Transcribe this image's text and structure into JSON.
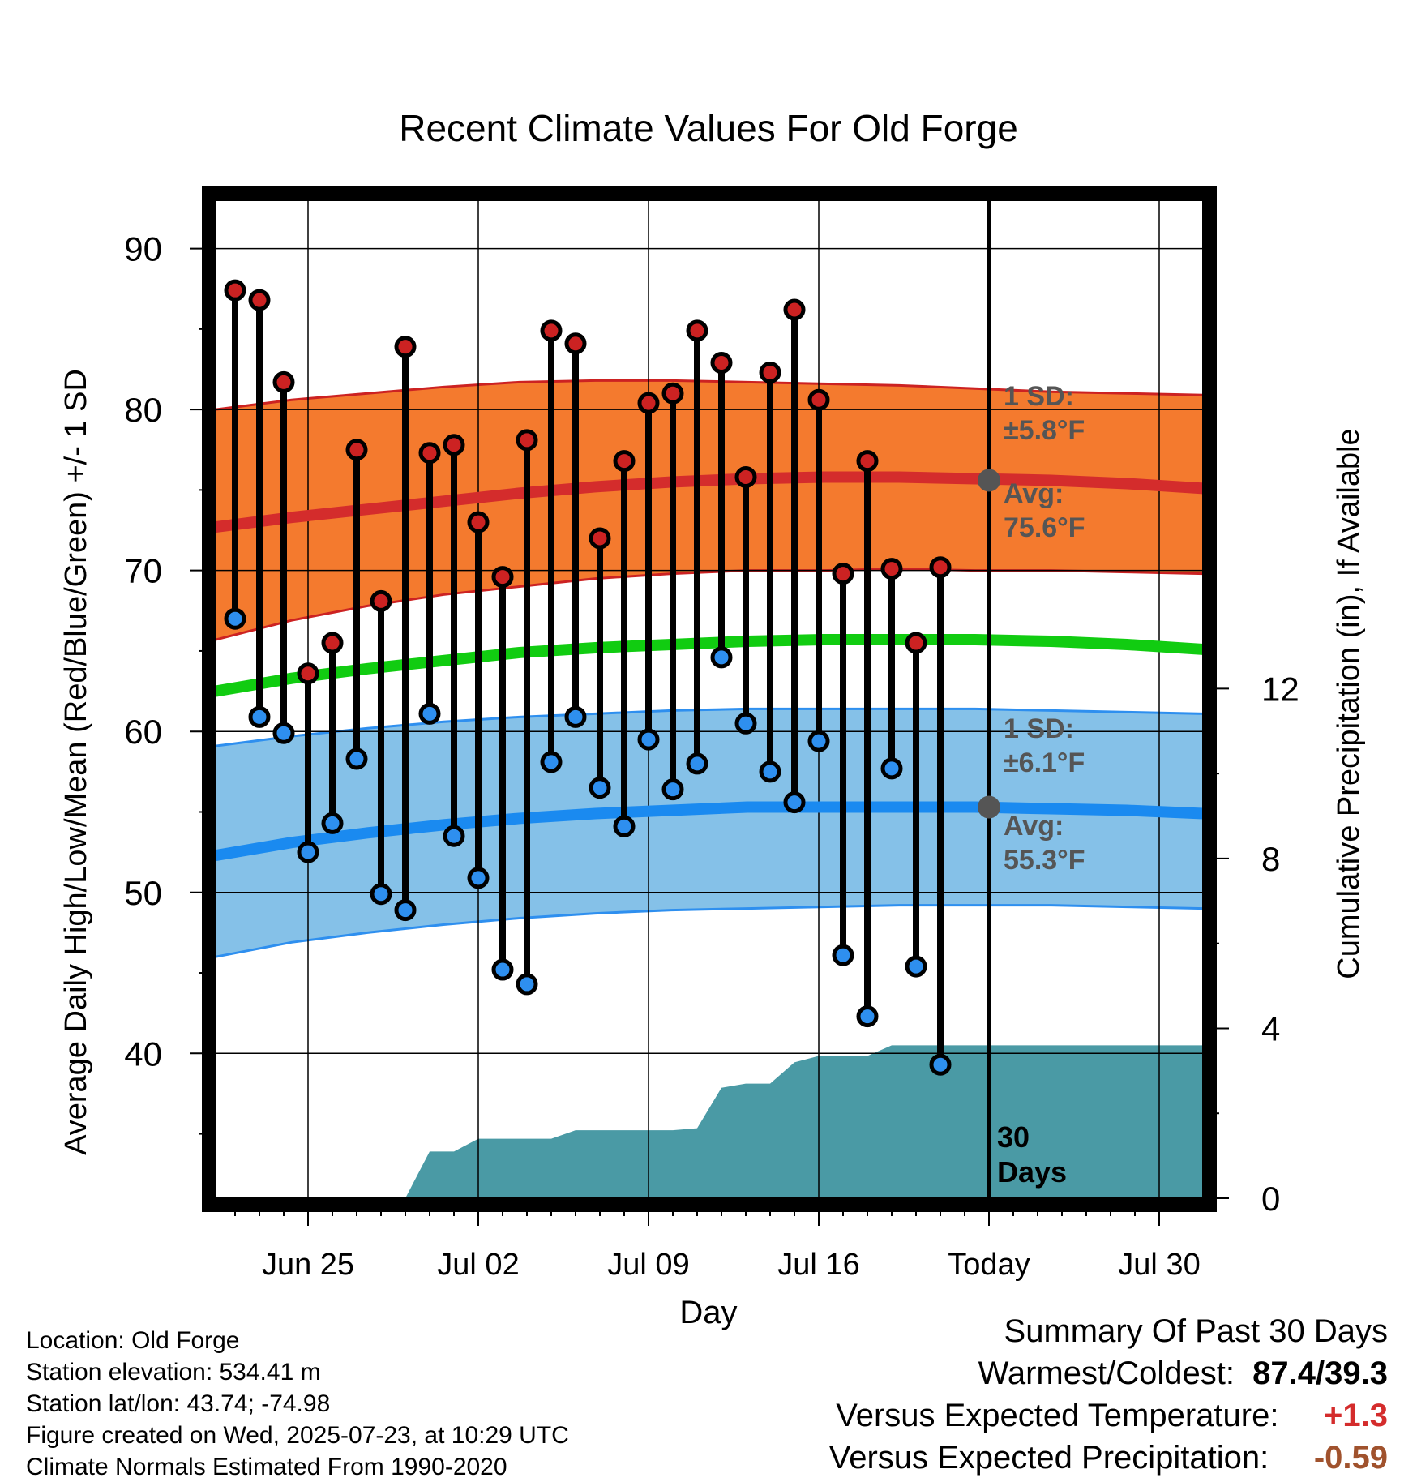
{
  "chart_data": {
    "type": "line",
    "title": "Recent Climate Values For Old Forge",
    "xlabel": "Day",
    "ylabel": "Average Daily High/Low/Mean (Red/Blue/Green) +/- 1 SD",
    "y2label": "Cumulative Precipitation (in), If Available",
    "ylim": [
      31,
      93
    ],
    "y_ticks": [
      40,
      50,
      60,
      70,
      80,
      90
    ],
    "y2lim": [
      0,
      23.5
    ],
    "y2_ticks": [
      0,
      4,
      8,
      12
    ],
    "x_tick_labels": [
      "Jun 25",
      "Jul 02",
      "Jul 09",
      "Jul 16",
      "Today",
      "Jul 30"
    ],
    "x_dates": [
      "2025-06-22",
      "2025-06-23",
      "2025-06-24",
      "2025-06-25",
      "2025-06-26",
      "2025-06-27",
      "2025-06-28",
      "2025-06-29",
      "2025-06-30",
      "2025-07-01",
      "2025-07-02",
      "2025-07-03",
      "2025-07-04",
      "2025-07-05",
      "2025-07-06",
      "2025-07-07",
      "2025-07-08",
      "2025-07-09",
      "2025-07-10",
      "2025-07-11",
      "2025-07-12",
      "2025-07-13",
      "2025-07-14",
      "2025-07-15",
      "2025-07-16",
      "2025-07-17",
      "2025-07-18",
      "2025-07-19",
      "2025-07-20",
      "2025-07-21",
      "2025-07-22"
    ],
    "series": [
      {
        "name": "High",
        "color": "#cc2222",
        "values": [
          87.4,
          86.8,
          81.7,
          63.6,
          65.5,
          77.5,
          68.1,
          83.9,
          77.3,
          77.8,
          73.0,
          69.6,
          78.1,
          84.9,
          84.1,
          72.0,
          76.8,
          80.4,
          81.0,
          84.9,
          82.9,
          75.8,
          82.3,
          86.2,
          80.6,
          69.8,
          76.8,
          70.1,
          65.5,
          70.2
        ]
      },
      {
        "name": "Low",
        "color": "#2e8fef",
        "values": [
          67.0,
          60.9,
          59.9,
          52.5,
          54.3,
          58.3,
          49.9,
          48.9,
          61.1,
          53.5,
          50.9,
          45.2,
          44.3,
          58.1,
          60.9,
          56.5,
          54.1,
          59.5,
          56.4,
          58.0,
          64.6,
          60.5,
          57.5,
          55.6,
          59.4,
          46.1,
          42.3,
          57.7,
          45.4,
          39.3
        ]
      },
      {
        "name": "Precipitation",
        "color": "#4a9aa5",
        "values": [
          0,
          0,
          0,
          0,
          0,
          0,
          0,
          0,
          1.1,
          1.1,
          1.4,
          1.4,
          1.4,
          1.4,
          1.6,
          1.6,
          1.6,
          1.6,
          1.6,
          1.65,
          2.6,
          2.7,
          2.7,
          3.2,
          3.35,
          3.35,
          3.35,
          3.6,
          3.6,
          3.6,
          3.6
        ]
      }
    ],
    "normals": {
      "high_avg": [
        72.7,
        73.3,
        73.8,
        74.3,
        74.8,
        75.2,
        75.5,
        75.7,
        75.8,
        75.8,
        75.7,
        75.6,
        75.4,
        75.1
      ],
      "high_sd_upper": [
        80.0,
        80.6,
        81.0,
        81.4,
        81.7,
        81.8,
        81.8,
        81.7,
        81.6,
        81.5,
        81.3,
        81.1,
        81.0,
        80.9
      ],
      "high_sd_lower": [
        65.7,
        66.9,
        67.8,
        68.5,
        69.0,
        69.5,
        69.8,
        70.0,
        70.0,
        70.1,
        70.0,
        70.0,
        69.9,
        69.8
      ],
      "mean": [
        62.5,
        63.3,
        63.9,
        64.4,
        64.9,
        65.2,
        65.4,
        65.6,
        65.7,
        65.7,
        65.7,
        65.6,
        65.4,
        65.1
      ],
      "low_avg": [
        52.3,
        53.1,
        53.7,
        54.2,
        54.6,
        54.9,
        55.1,
        55.3,
        55.3,
        55.3,
        55.3,
        55.2,
        55.1,
        54.9
      ],
      "low_sd_upper": [
        59.1,
        59.7,
        60.2,
        60.6,
        60.9,
        61.1,
        61.3,
        61.4,
        61.4,
        61.4,
        61.4,
        61.3,
        61.2,
        61.1
      ],
      "low_sd_lower": [
        46.0,
        46.9,
        47.5,
        48.0,
        48.4,
        48.7,
        48.9,
        49.0,
        49.1,
        49.2,
        49.2,
        49.2,
        49.1,
        49.0
      ],
      "high_fill": "#f47a2e",
      "low_fill": "#85c1e8",
      "mean_color": "#11cc11"
    },
    "annotations": {
      "high_sd_title": "1 SD:",
      "high_sd_value": "±5.8°F",
      "high_avg_title": "Avg:",
      "high_avg_value": "75.6°F",
      "low_sd_title": "1 SD:",
      "low_sd_value": "±6.1°F",
      "low_avg_title": "Avg:",
      "low_avg_value": "55.3°F",
      "days_line1": "30",
      "days_line2": "Days"
    },
    "grid": true
  },
  "meta": {
    "location": "Location: Old Forge",
    "elevation": "Station elevation: 534.41 m",
    "latlon": "Station lat/lon: 43.74; -74.98",
    "created": "Figure created on Wed, 2025-07-23, at 10:29 UTC",
    "normals": "Climate Normals Estimated From 1990-2020"
  },
  "summary": {
    "title": "Summary Of Past 30 Days",
    "warm_cold_label": "Warmest/Coldest:",
    "warm_cold_value": "87.4/39.3",
    "temp_label": "Versus Expected Temperature:",
    "temp_value": "+1.3",
    "temp_color": "#d42c2c",
    "precip_label": "Versus Expected Precipitation:",
    "precip_value": "-0.59",
    "precip_color": "#a0522d"
  }
}
